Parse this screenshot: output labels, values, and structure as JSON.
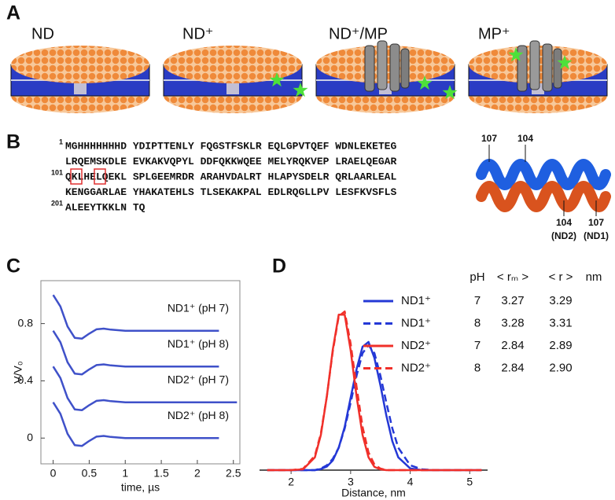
{
  "panels": {
    "a": {
      "label": "A",
      "titles": [
        "ND",
        "ND⁺",
        "ND⁺/MP",
        "MP⁺"
      ]
    },
    "b": {
      "label": "B",
      "sequence": [
        {
          "number": "1",
          "text": "MGHHHHHHHD YDIPTTENLY FQGSTFSKLR EQLGPVTQEF WDNLEKETEG"
        },
        {
          "text": "LRQEMSKDLE EVKAKVQPYL DDFQKKWQEE MELYRQKVEP LRAELQEGAR"
        },
        {
          "number": "101",
          "text": "QKLHELQEKL SPLGEEMRDR ARAHVDALRT HLAPYSDELR QRLAARLEAL"
        },
        {
          "text": "KENGGARLAE YHAKATEHLS TLSEKAKPAL EDLRQGLLPV LESFKVSFLS"
        },
        {
          "number": "201",
          "text": "ALEEYTKKLN TQ"
        }
      ],
      "helix_top": [
        "107",
        "104"
      ],
      "helix_bottom": [
        {
          "number": "104",
          "note": "(ND2)"
        },
        {
          "number": "107",
          "note": "(ND1)"
        }
      ]
    },
    "c": {
      "label": "C"
    },
    "d": {
      "label": "D"
    }
  },
  "chart_data": [
    {
      "type": "line",
      "x_label": "time, µs",
      "y_label": "V/V₀",
      "xlim": [
        -0.17,
        2.59
      ],
      "ylim": [
        -0.18,
        1.1
      ],
      "xticks": [
        0,
        0.5,
        1,
        1.5,
        2,
        2.5
      ],
      "yticks": [
        0,
        0.4,
        0.8
      ],
      "series": [
        {
          "name": "ND1⁺  (pH 7)",
          "color": "#3f51c9",
          "x": [
            0,
            0.1,
            0.2,
            0.3,
            0.4,
            0.5,
            0.6,
            0.7,
            0.8,
            1.0,
            1.5,
            2.0,
            2.3
          ],
          "values": [
            1.0,
            0.92,
            0.78,
            0.7,
            0.695,
            0.73,
            0.76,
            0.765,
            0.758,
            0.75,
            0.75,
            0.75,
            0.75
          ]
        },
        {
          "name": "ND1⁺  (pH 8)",
          "color": "#3f51c9",
          "x": [
            0,
            0.1,
            0.2,
            0.3,
            0.4,
            0.5,
            0.6,
            0.7,
            0.8,
            1.0,
            1.5,
            2.0,
            2.3
          ],
          "values": [
            0.75,
            0.67,
            0.53,
            0.45,
            0.445,
            0.48,
            0.51,
            0.515,
            0.508,
            0.5,
            0.5,
            0.5,
            0.5
          ]
        },
        {
          "name": "ND2⁺  (pH 7)",
          "color": "#3f51c9",
          "x": [
            0,
            0.1,
            0.2,
            0.3,
            0.4,
            0.5,
            0.6,
            0.7,
            0.8,
            1.0,
            1.5,
            2.0,
            2.3,
            2.55
          ],
          "values": [
            0.5,
            0.42,
            0.28,
            0.2,
            0.195,
            0.23,
            0.26,
            0.265,
            0.258,
            0.25,
            0.25,
            0.25,
            0.25,
            0.25
          ]
        },
        {
          "name": "ND2⁺  (pH 8)",
          "color": "#3f51c9",
          "x": [
            0,
            0.1,
            0.2,
            0.3,
            0.4,
            0.5,
            0.6,
            0.7,
            0.8,
            1.0,
            1.5,
            2.0,
            2.3
          ],
          "values": [
            0.25,
            0.17,
            0.03,
            -0.05,
            -0.055,
            -0.02,
            0.01,
            0.015,
            0.008,
            0,
            0,
            0,
            0
          ]
        }
      ]
    },
    {
      "type": "line",
      "x_label": "Distance, nm",
      "xlim": [
        1.47,
        5.3
      ],
      "ylim": [
        0,
        1.05
      ],
      "xticks": [
        2,
        3,
        4,
        5
      ],
      "table_header": [
        "pH",
        "< rₘ >",
        "< r >",
        "nm"
      ],
      "series": [
        {
          "name": "ND1⁺",
          "color": "#2438d6",
          "dashed": false,
          "ph": "7",
          "r_m": "3.27",
          "r": "3.29",
          "x": [
            1.6,
            2.0,
            2.2,
            2.4,
            2.5,
            2.6,
            2.7,
            2.8,
            2.9,
            3.0,
            3.1,
            3.2,
            3.3,
            3.4,
            3.5,
            3.6,
            3.7,
            3.8,
            4.0,
            4.2,
            4.4,
            5.2
          ],
          "values": [
            0,
            0,
            0,
            0,
            0.007,
            0.022,
            0.06,
            0.14,
            0.27,
            0.45,
            0.63,
            0.77,
            0.8,
            0.7,
            0.53,
            0.34,
            0.18,
            0.08,
            0.011,
            0,
            0,
            0
          ]
        },
        {
          "name": "ND1⁺",
          "color": "#2438d6",
          "dashed": true,
          "ph": "8",
          "r_m": "3.28",
          "r": "3.31",
          "x": [
            1.6,
            2.0,
            2.2,
            2.4,
            2.5,
            2.6,
            2.7,
            2.8,
            2.9,
            3.0,
            3.1,
            3.2,
            3.3,
            3.4,
            3.5,
            3.6,
            3.7,
            3.8,
            4.0,
            4.2,
            4.4,
            5.2
          ],
          "values": [
            0,
            0,
            0,
            0,
            0.01,
            0.03,
            0.07,
            0.14,
            0.26,
            0.42,
            0.59,
            0.73,
            0.78,
            0.73,
            0.59,
            0.42,
            0.26,
            0.14,
            0.03,
            0.005,
            0,
            0
          ]
        },
        {
          "name": "ND2⁺",
          "color": "#f0302a",
          "dashed": false,
          "ph": "7",
          "r_m": "2.84",
          "r": "2.89",
          "x": [
            1.6,
            2.0,
            2.2,
            2.4,
            2.5,
            2.6,
            2.7,
            2.8,
            2.9,
            3.0,
            3.1,
            3.2,
            3.3,
            3.4,
            3.5,
            3.6,
            3.7,
            3.8,
            4.0,
            4.2,
            4.4,
            5.2
          ],
          "values": [
            0,
            0,
            0.005,
            0.08,
            0.22,
            0.46,
            0.75,
            0.97,
            0.97,
            0.75,
            0.46,
            0.22,
            0.08,
            0.02,
            0.005,
            0,
            0,
            0,
            0,
            0,
            0,
            0
          ]
        },
        {
          "name": "ND2⁺",
          "color": "#f0302a",
          "dashed": true,
          "ph": "8",
          "r_m": "2.84",
          "r": "2.90",
          "x": [
            1.6,
            2.0,
            2.2,
            2.4,
            2.5,
            2.6,
            2.7,
            2.8,
            2.9,
            3.0,
            3.1,
            3.2,
            3.3,
            3.4,
            3.5,
            3.6,
            3.7,
            3.8,
            4.0,
            4.2,
            4.4,
            5.2
          ],
          "values": [
            0,
            0,
            0.008,
            0.09,
            0.23,
            0.46,
            0.74,
            0.96,
            0.99,
            0.79,
            0.52,
            0.27,
            0.11,
            0.035,
            0.01,
            0,
            0,
            0,
            0,
            0,
            0,
            0
          ]
        }
      ]
    }
  ]
}
